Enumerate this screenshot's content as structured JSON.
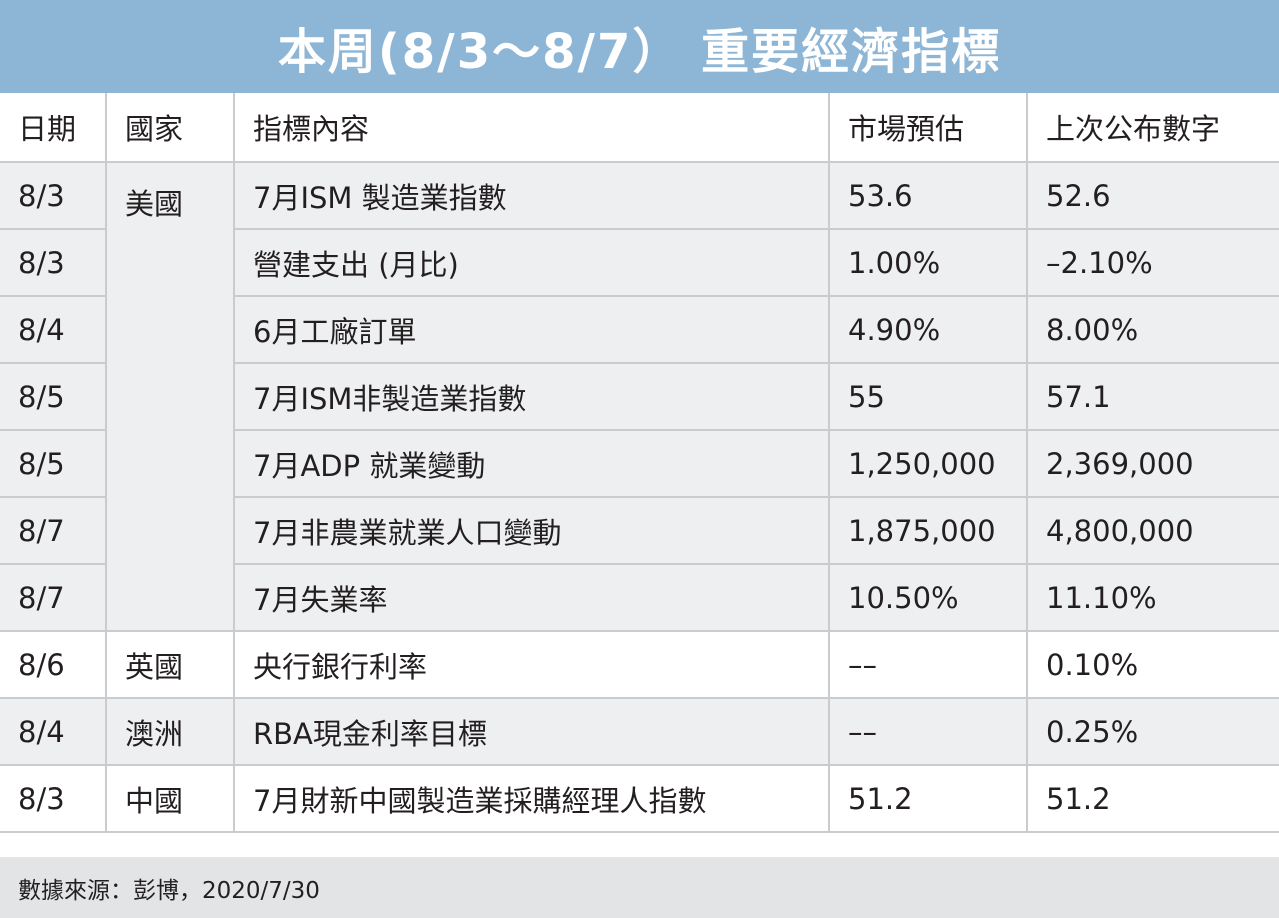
{
  "title": "本周(8/3～8/7） 重要經濟指標",
  "headers": {
    "date": "日期",
    "country": "國家",
    "indicator": "指標內容",
    "forecast": "市場預估",
    "previous": "上次公布數字"
  },
  "rows": [
    {
      "date": "8/3",
      "country": "美國",
      "indicator": "7月ISM 製造業指數",
      "forecast": "53.6",
      "previous": "52.6"
    },
    {
      "date": "8/3",
      "country": "",
      "indicator": "營建支出 (月比)",
      "forecast": "1.00%",
      "previous": "–2.10%"
    },
    {
      "date": "8/4",
      "country": "",
      "indicator": "6月工廠訂單",
      "forecast": "4.90%",
      "previous": "8.00%"
    },
    {
      "date": "8/5",
      "country": "",
      "indicator": "7月ISM非製造業指數",
      "forecast": "55",
      "previous": "57.1"
    },
    {
      "date": "8/5",
      "country": "",
      "indicator": "7月ADP 就業變動",
      "forecast": "1,250,000",
      "previous": "2,369,000"
    },
    {
      "date": "8/7",
      "country": "",
      "indicator": "7月非農業就業人口變動",
      "forecast": "1,875,000",
      "previous": "4,800,000"
    },
    {
      "date": "8/7",
      "country": "",
      "indicator": "7月失業率",
      "forecast": "10.50%",
      "previous": "11.10%"
    },
    {
      "date": "8/6",
      "country": "英國",
      "indicator": "央行銀行利率",
      "forecast": "––",
      "previous": "0.10%"
    },
    {
      "date": "8/4",
      "country": "澳洲",
      "indicator": "RBA現金利率目標",
      "forecast": "––",
      "previous": "0.25%"
    },
    {
      "date": "8/3",
      "country": "中國",
      "indicator": "7月財新中國製造業採購經理人指數",
      "forecast": "51.2",
      "previous": "51.2"
    }
  ],
  "source": "數據來源：彭博，2020/7/30",
  "colors": {
    "title_background": "#8db5d5",
    "band_background": "#eeeff1",
    "source_background": "#e3e4e6",
    "grid_line": "#c9ccce"
  }
}
